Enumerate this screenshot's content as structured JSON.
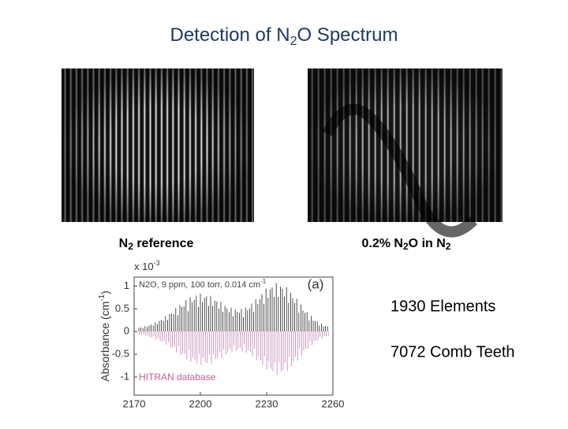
{
  "title": {
    "before": "Detection of N",
    "sub": "2",
    "after": "O Spectrum"
  },
  "images": [
    {
      "caption": {
        "before": "N",
        "sub": "2",
        "after": " reference"
      }
    },
    {
      "caption": {
        "before": "0.2% N",
        "sub": "2",
        "middle": "O in N",
        "sub2": "2"
      }
    }
  ],
  "figure": {
    "ylabel": "Absorbance (cm",
    "ylabel_sup": "-1",
    "ylabel_end": ")",
    "exponent": "x 10",
    "exponent_sup": "-3",
    "legend": "N2O, 9 ppm, 100 torr, 0.014 cm",
    "legend_sup": "-1",
    "panel": "(a)",
    "reference": "HITRAN database",
    "xlim": [
      2170,
      2260
    ],
    "xticks": [
      2170,
      2200,
      2230,
      2260
    ],
    "ylim": [
      -1.4,
      1.2
    ],
    "yticks": [
      1,
      0.5,
      0,
      -0.5,
      -1
    ]
  },
  "bullets": [
    "1930 Elements",
    "7072 Comb Teeth"
  ]
}
